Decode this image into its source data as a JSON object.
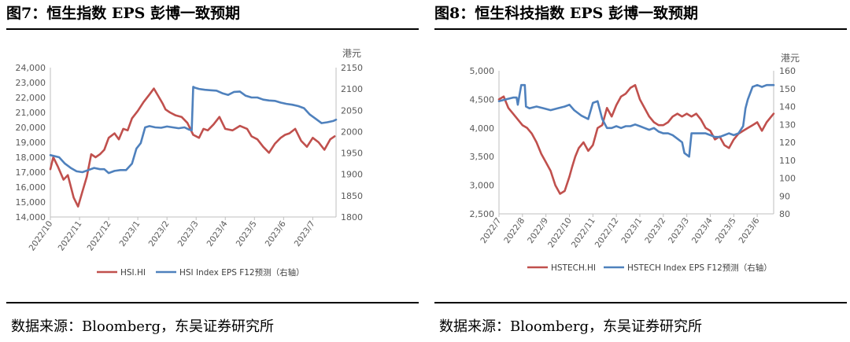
{
  "panels": [
    {
      "title": "图7：恒生指数 EPS 彭博一致预期",
      "source": "数据来源：Bloomberg，东吴证券研究所",
      "chart_data": {
        "type": "line",
        "right_axis_unit": "港元",
        "x_ticks": [
          "2022/10",
          "2022/11",
          "2022/12",
          "2023/1",
          "2023/2",
          "2023/3",
          "2023/4",
          "2023/5",
          "2023/6",
          "2023/7"
        ],
        "x_range": [
          0,
          9.8
        ],
        "y_left": {
          "min": 14000,
          "max": 24000,
          "ticks": [
            "14,000",
            "15,000",
            "16,000",
            "17,000",
            "18,000",
            "19,000",
            "20,000",
            "21,000",
            "22,000",
            "23,000",
            "24,000"
          ]
        },
        "y_right": {
          "min": 1800,
          "max": 2150,
          "ticks": [
            "1800",
            "1850",
            "1900",
            "1950",
            "2000",
            "2050",
            "2100",
            "2150"
          ]
        },
        "series": [
          {
            "name": "HSI.HI",
            "axis": "left",
            "color": "#C0504D",
            "x": [
              0,
              0.1,
              0.25,
              0.45,
              0.6,
              0.8,
              0.95,
              1.1,
              1.25,
              1.4,
              1.55,
              1.7,
              1.85,
              2.0,
              2.2,
              2.35,
              2.5,
              2.65,
              2.8,
              3.0,
              3.2,
              3.4,
              3.55,
              3.7,
              3.85,
              3.95,
              4.1,
              4.3,
              4.5,
              4.7,
              4.9,
              5.1,
              5.25,
              5.4,
              5.6,
              5.8,
              6.0,
              6.25,
              6.5,
              6.75,
              6.9,
              7.1,
              7.3,
              7.5,
              7.7,
              7.9,
              8.05,
              8.2,
              8.4,
              8.6,
              8.8,
              9.0,
              9.2,
              9.4,
              9.6,
              9.75
            ],
            "y": [
              17200,
              18000,
              17400,
              16500,
              16800,
              15300,
              14700,
              15700,
              16700,
              18200,
              18000,
              18200,
              18500,
              19300,
              19600,
              19200,
              19900,
              19800,
              20600,
              21100,
              21700,
              22200,
              22600,
              22100,
              21600,
              21200,
              21000,
              20800,
              20700,
              20300,
              19500,
              19300,
              19900,
              19800,
              20200,
              20700,
              19900,
              19800,
              20100,
              19900,
              19400,
              19200,
              18700,
              18300,
              18900,
              19300,
              19500,
              19600,
              19900,
              19100,
              18700,
              19300,
              19000,
              18500,
              19200,
              19400
            ]
          },
          {
            "name": "HSI Index EPS F12预测（右轴）",
            "axis": "right",
            "color": "#4F81BD",
            "x": [
              0,
              0.3,
              0.5,
              0.7,
              0.9,
              1.1,
              1.3,
              1.5,
              1.7,
              1.85,
              2.0,
              2.2,
              2.4,
              2.6,
              2.8,
              2.95,
              3.1,
              3.25,
              3.4,
              3.6,
              3.8,
              4.0,
              4.2,
              4.4,
              4.6,
              4.75,
              4.85,
              4.9,
              4.95,
              5.1,
              5.3,
              5.5,
              5.7,
              5.9,
              6.1,
              6.3,
              6.5,
              6.7,
              6.9,
              7.1,
              7.3,
              7.5,
              7.7,
              7.9,
              8.1,
              8.3,
              8.5,
              8.7,
              8.9,
              9.1,
              9.3,
              9.5,
              9.7,
              9.8
            ],
            "y": [
              1945,
              1940,
              1925,
              1915,
              1907,
              1905,
              1910,
              1915,
              1912,
              1912,
              1903,
              1908,
              1910,
              1910,
              1925,
              1960,
              1973,
              2010,
              2013,
              2010,
              2009,
              2012,
              2010,
              2008,
              2010,
              2005,
              2003,
              2105,
              2103,
              2100,
              2098,
              2097,
              2096,
              2090,
              2086,
              2093,
              2094,
              2084,
              2080,
              2080,
              2075,
              2073,
              2072,
              2068,
              2065,
              2063,
              2060,
              2055,
              2040,
              2030,
              2020,
              2022,
              2025,
              2028
            ]
          }
        ]
      }
    },
    {
      "title": "图8：恒生科技指数 EPS 彭博一致预期",
      "source": "数据来源：Bloomberg，东吴证券研究所",
      "chart_data": {
        "type": "line",
        "right_axis_unit": "港元",
        "x_ticks": [
          "2022/7",
          "2022/8",
          "2022/9",
          "2022/10",
          "2022/11",
          "2022/12",
          "2023/1",
          "2023/2",
          "2023/3",
          "2023/4",
          "2023/5",
          "2023/6"
        ],
        "x_range": [
          0,
          11.7
        ],
        "y_left": {
          "min": 2500,
          "max": 5000,
          "ticks": [
            "2,500",
            "3,000",
            "3,500",
            "4,000",
            "4,500",
            "5,000"
          ]
        },
        "y_right": {
          "min": 80,
          "max": 160,
          "ticks": [
            "80",
            "90",
            "100",
            "110",
            "120",
            "130",
            "140",
            "150",
            "160"
          ]
        },
        "series": [
          {
            "name": "HSTECH.HI",
            "axis": "left",
            "color": "#C0504D",
            "x": [
              0,
              0.2,
              0.4,
              0.6,
              0.8,
              1.0,
              1.2,
              1.4,
              1.6,
              1.8,
              2.0,
              2.2,
              2.4,
              2.6,
              2.8,
              3.0,
              3.1,
              3.25,
              3.4,
              3.6,
              3.8,
              4.0,
              4.2,
              4.4,
              4.6,
              4.8,
              5.0,
              5.2,
              5.4,
              5.6,
              5.8,
              6.0,
              6.2,
              6.4,
              6.6,
              6.8,
              7.0,
              7.2,
              7.4,
              7.6,
              7.8,
              8.0,
              8.2,
              8.4,
              8.6,
              8.8,
              9.0,
              9.2,
              9.4,
              9.6,
              9.8,
              10.0,
              10.2,
              10.4,
              10.6,
              10.8,
              11.0,
              11.2,
              11.4,
              11.6,
              11.7
            ],
            "y": [
              4500,
              4550,
              4350,
              4250,
              4150,
              4050,
              4000,
              3900,
              3750,
              3550,
              3400,
              3250,
              3000,
              2850,
              2900,
              3150,
              3300,
              3500,
              3650,
              3750,
              3600,
              3700,
              4000,
              4050,
              4350,
              4200,
              4400,
              4550,
              4600,
              4700,
              4750,
              4500,
              4350,
              4200,
              4100,
              4050,
              4050,
              4100,
              4200,
              4250,
              4200,
              4250,
              4200,
              4250,
              4150,
              4000,
              3950,
              3800,
              3850,
              3700,
              3650,
              3800,
              3900,
              3950,
              4000,
              4050,
              4100,
              3950,
              4100,
              4200,
              4250
            ]
          },
          {
            "name": "HSTECH Index EPS F12预测（右轴）",
            "axis": "right",
            "color": "#4F81BD",
            "x": [
              0,
              0.3,
              0.6,
              0.75,
              0.8,
              0.95,
              1.1,
              1.15,
              1.3,
              1.6,
              1.9,
              2.2,
              2.5,
              2.8,
              3.0,
              3.2,
              3.5,
              3.8,
              4.0,
              4.2,
              4.4,
              4.6,
              4.8,
              5.0,
              5.2,
              5.4,
              5.6,
              5.8,
              6.0,
              6.2,
              6.4,
              6.6,
              6.8,
              7.0,
              7.2,
              7.4,
              7.6,
              7.8,
              7.9,
              8.0,
              8.1,
              8.2,
              8.3,
              8.4,
              8.6,
              8.8,
              9.0,
              9.2,
              9.4,
              9.6,
              9.8,
              10.0,
              10.2,
              10.4,
              10.5,
              10.6,
              10.8,
              11.0,
              11.2,
              11.4,
              11.6,
              11.7
            ],
            "y": [
              143,
              144,
              145,
              145,
              141,
              152,
              152,
              140,
              139,
              140,
              139,
              138,
              139,
              140,
              141,
              138,
              135,
              133,
              142,
              143,
              133,
              128,
              128,
              129,
              128,
              129,
              129,
              130,
              129,
              128,
              127,
              128,
              126,
              125,
              125,
              124,
              122,
              120,
              114,
              113,
              112,
              125,
              125,
              125,
              125,
              125,
              124,
              123,
              123,
              124,
              125,
              124,
              125,
              129,
              139,
              144,
              151,
              152,
              151,
              152,
              152,
              152
            ]
          }
        ]
      }
    }
  ]
}
